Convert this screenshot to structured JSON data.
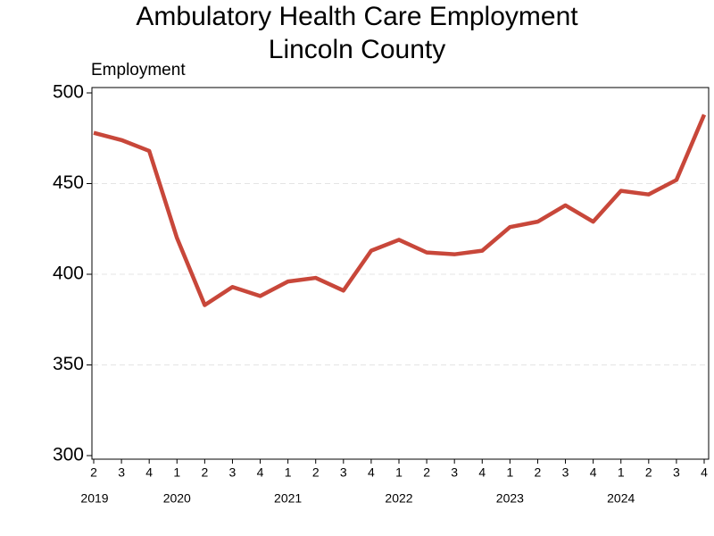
{
  "chart_data": {
    "type": "line",
    "title": [
      "Ambulatory Health Care Employment",
      "Lincoln County"
    ],
    "y_label": "Employment",
    "categories": [
      "2",
      "3",
      "4",
      "1",
      "2",
      "3",
      "4",
      "1",
      "2",
      "3",
      "4",
      "1",
      "2",
      "3",
      "4",
      "1",
      "2",
      "3",
      "4",
      "1",
      "2",
      "3",
      "4"
    ],
    "year_labels": [
      "2019",
      null,
      null,
      "2020",
      null,
      null,
      null,
      "2021",
      null,
      null,
      null,
      "2022",
      null,
      null,
      null,
      "2023",
      null,
      null,
      null,
      "2024",
      null,
      null,
      null
    ],
    "series": [
      {
        "color": "#c8473a",
        "values": [
          478,
          474,
          468,
          420,
          383,
          393,
          388,
          396,
          398,
          391,
          413,
          419,
          412,
          411,
          413,
          426,
          429,
          438,
          429,
          446,
          444,
          452,
          488
        ]
      }
    ],
    "ylim": [
      300,
      500
    ],
    "yticks": [
      300,
      350,
      400,
      450,
      500
    ],
    "grid": true
  }
}
